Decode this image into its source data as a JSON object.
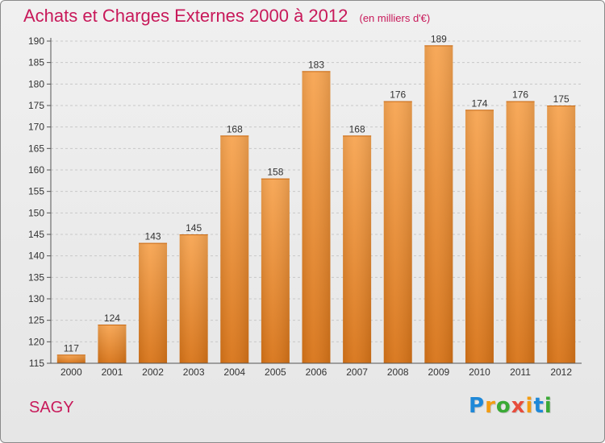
{
  "header": {
    "title": "Achats et Charges Externes 2000 à 2012",
    "subtitle": "(en milliers d'€)"
  },
  "footer": {
    "commune": "SAGY",
    "logo_letters": [
      {
        "ch": "P",
        "color": "#1e88d8"
      },
      {
        "ch": "r",
        "color": "#f39c12"
      },
      {
        "ch": "o",
        "color": "#3aa935"
      },
      {
        "ch": "x",
        "color": "#e74c3c"
      },
      {
        "ch": "i",
        "color": "#f39c12"
      },
      {
        "ch": "t",
        "color": "#1e88d8"
      },
      {
        "ch": "i",
        "color": "#3aa935"
      }
    ]
  },
  "colors": {
    "title": "#c8195a",
    "bar_top": "#f7a552",
    "bar_bottom": "#d87418",
    "grid": "#c8c8c8"
  },
  "chart_data": {
    "type": "bar",
    "title": "Achats et Charges Externes 2000 à 2012",
    "subtitle": "(en milliers d'€)",
    "categories": [
      "2000",
      "2001",
      "2002",
      "2003",
      "2004",
      "2005",
      "2006",
      "2007",
      "2008",
      "2009",
      "2010",
      "2011",
      "2012"
    ],
    "values": [
      117,
      124,
      143,
      145,
      168,
      158,
      183,
      168,
      176,
      189,
      174,
      176,
      175
    ],
    "ylim": [
      115,
      190
    ],
    "yticks": [
      115,
      120,
      125,
      130,
      135,
      140,
      145,
      150,
      155,
      160,
      165,
      170,
      175,
      180,
      185,
      190
    ],
    "grid": true,
    "data_labels": true
  }
}
